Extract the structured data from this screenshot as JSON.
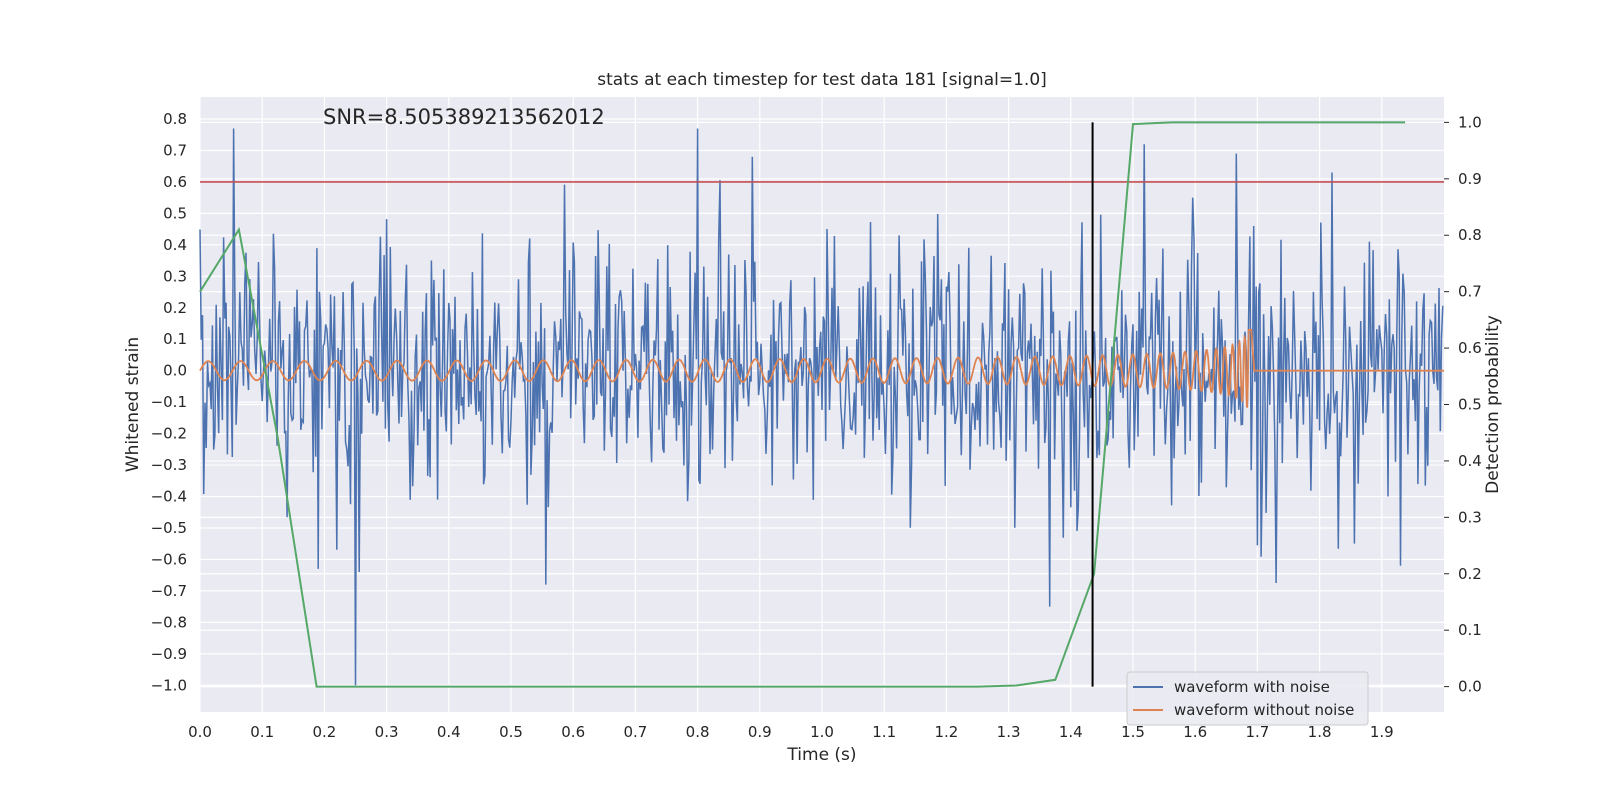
{
  "chart_data": {
    "type": "line",
    "title": "stats at each timestep for test data 181 [signal=1.0]",
    "xlabel": "Time (s)",
    "ylabel": "Whitened strain",
    "ylabel_right": "Detection probability",
    "annotation": "SNR=8.505389213562012",
    "xlim": [
      0.0,
      2.0
    ],
    "ylim": [
      -1.085,
      0.87
    ],
    "ylim_right": [
      -0.045,
      1.045
    ],
    "xticks": [
      "0.0",
      "0.1",
      "0.2",
      "0.3",
      "0.4",
      "0.5",
      "0.6",
      "0.7",
      "0.8",
      "0.9",
      "1.0",
      "1.1",
      "1.2",
      "1.3",
      "1.4",
      "1.5",
      "1.6",
      "1.7",
      "1.8",
      "1.9"
    ],
    "yticks_left": [
      "0.8",
      "0.7",
      "0.6",
      "0.5",
      "0.4",
      "0.3",
      "0.2",
      "0.1",
      "0.0",
      "−0.1",
      "−0.2",
      "−0.3",
      "−0.4",
      "−0.5",
      "−0.6",
      "−0.7",
      "−0.8",
      "−0.9",
      "−1.0"
    ],
    "yticks_right": [
      "1.0",
      "0.9",
      "0.8",
      "0.7",
      "0.6",
      "0.5",
      "0.4",
      "0.3",
      "0.2",
      "0.1",
      "0.0"
    ],
    "grid": true,
    "legend_position": "lower-right",
    "colors": {
      "noise": "#4c72b0",
      "clean": "#dd8452",
      "probability": "#55a868",
      "threshold": "#c44e52",
      "marker": "#000000",
      "plot_bg": "#eaeaf2",
      "grid": "#ffffff"
    },
    "threshold": {
      "y": 0.6
    },
    "vertical_marker": {
      "x": 1.435
    },
    "series": [
      {
        "name": "waveform with noise",
        "axis": "left",
        "style": "noise",
        "std": 0.2,
        "peaks": [
          [
            0.053,
            0.77
          ],
          [
            0.8,
            0.77
          ],
          [
            0.888,
            0.68
          ],
          [
            1.665,
            0.69
          ],
          [
            1.82,
            0.63
          ],
          [
            1.595,
            0.55
          ],
          [
            0.25,
            -1.0
          ],
          [
            0.255,
            -0.64
          ],
          [
            0.555,
            -0.68
          ],
          [
            1.365,
            -0.75
          ],
          [
            0.19,
            -0.63
          ],
          [
            1.93,
            -0.62
          ]
        ]
      },
      {
        "name": "waveform without noise",
        "axis": "left",
        "style": "chirp",
        "t_merge": 1.69,
        "f0": 19,
        "a0": 0.03,
        "a_end": 0.23
      },
      {
        "name": "detection probability",
        "axis": "right",
        "x": [
          0.0,
          0.0625,
          0.125,
          0.1875,
          0.25,
          0.3125,
          0.375,
          0.4375,
          0.5,
          0.5625,
          0.625,
          0.6875,
          0.75,
          0.8125,
          0.875,
          0.9375,
          1.0,
          1.0625,
          1.125,
          1.1875,
          1.25,
          1.3125,
          1.375,
          1.4375,
          1.5,
          1.5625,
          1.625,
          1.6875,
          1.75,
          1.8125,
          1.875,
          1.9375
        ],
        "y": [
          0.7,
          0.81,
          0.44,
          0.0,
          0.0,
          0.0,
          0.0,
          0.0,
          0.0,
          0.0,
          0.0,
          0.0,
          0.0,
          0.0,
          0.0,
          0.0,
          0.0,
          0.0,
          0.0,
          0.0,
          0.0,
          0.002,
          0.012,
          0.2,
          0.997,
          1.0,
          1.0,
          1.0,
          1.0,
          1.0,
          1.0,
          1.0
        ]
      }
    ]
  }
}
